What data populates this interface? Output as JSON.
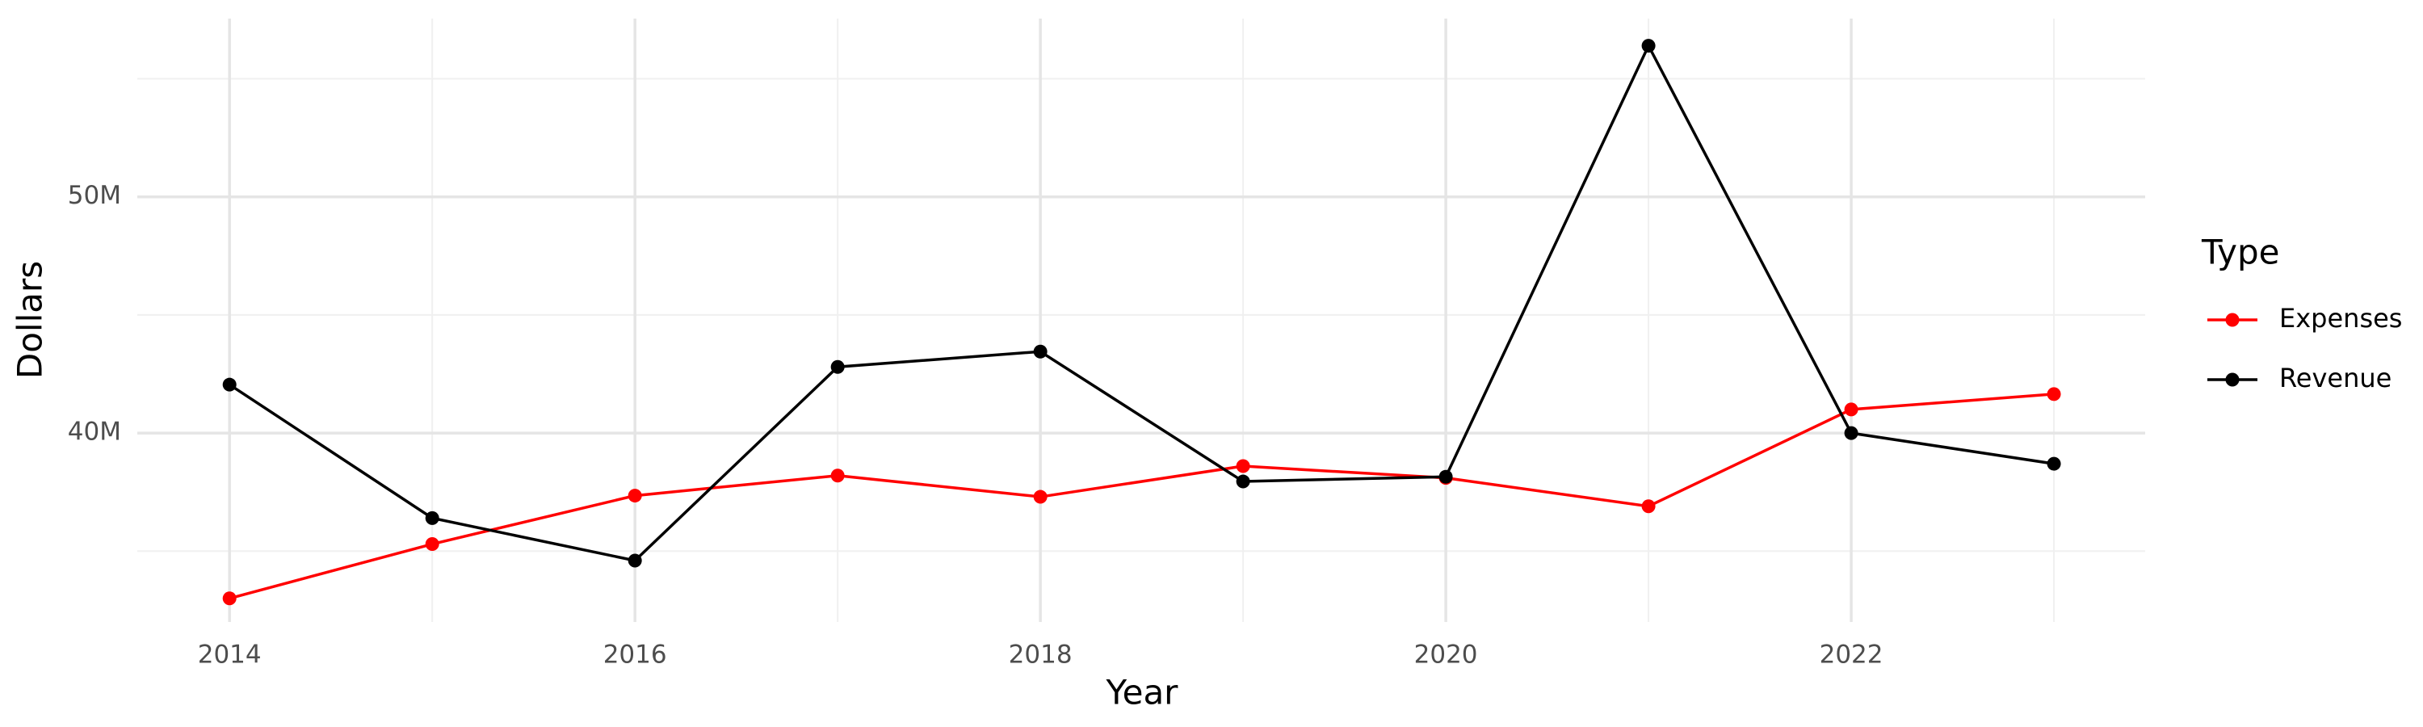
{
  "chart_data": {
    "type": "line",
    "x_label": "Year",
    "y_label": "Dollars",
    "legend_title": "Type",
    "x": [
      2014,
      2015,
      2016,
      2017,
      2018,
      2019,
      2020,
      2021,
      2022,
      2023
    ],
    "series": [
      {
        "name": "Expenses",
        "color": "#ff0000",
        "values": [
          33000000,
          35300000,
          37350000,
          38200000,
          37300000,
          38600000,
          38100000,
          36900000,
          41000000,
          41650000
        ]
      },
      {
        "name": "Revenue",
        "color": "#000000",
        "values": [
          42050000,
          36400000,
          34600000,
          42800000,
          43450000,
          37950000,
          38150000,
          56400000,
          40000000,
          38700000
        ]
      }
    ],
    "xlim": [
      2013.545,
      2023.45
    ],
    "xticks": [
      2014,
      2016,
      2018,
      2020,
      2022
    ],
    "xminor": [
      2015,
      2017,
      2019,
      2021,
      2023
    ],
    "ylim": [
      32000000,
      57550000
    ],
    "yticks": [
      {
        "value": 40000000,
        "label": "40M"
      },
      {
        "value": 50000000,
        "label": "50M"
      }
    ],
    "yminor": [
      35000000,
      45000000,
      55000000
    ],
    "grid": true,
    "legend_position": "right"
  }
}
